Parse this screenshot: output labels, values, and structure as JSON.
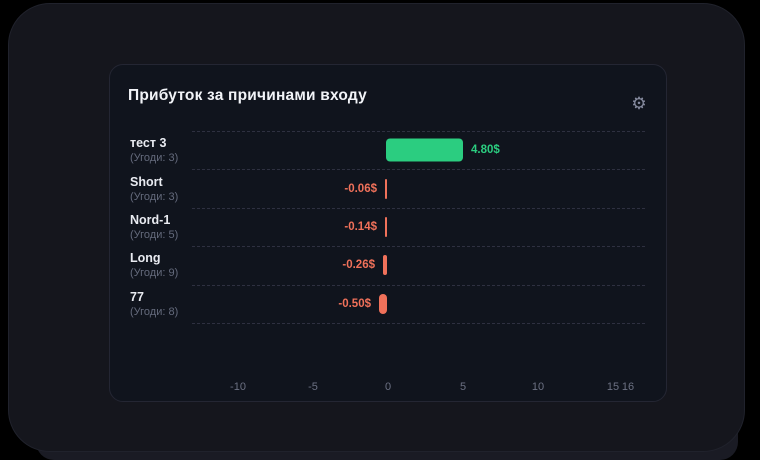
{
  "header": {
    "title": "Прибуток за причинами входу",
    "settings_icon": "gear",
    "settings_icon_glyph": "⚙"
  },
  "chart_data": {
    "type": "bar",
    "orientation": "horizontal",
    "title": "Прибуток за причинами входу",
    "rows": [
      {
        "label": "тест 3",
        "trades": "(Угоди: 3)",
        "value": 4.8,
        "value_label": "4.80$"
      },
      {
        "label": "Short",
        "trades": "(Угоди: 3)",
        "value": -0.06,
        "value_label": "-0.06$"
      },
      {
        "label": "Nord-1",
        "trades": "(Угоди: 5)",
        "value": -0.14,
        "value_label": "-0.14$"
      },
      {
        "label": "Long",
        "trades": "(Угоди: 9)",
        "value": -0.26,
        "value_label": "-0.26$"
      },
      {
        "label": "77",
        "trades": "(Угоди: 8)",
        "value": -0.5,
        "value_label": "-0.50$"
      }
    ],
    "x_ticks": [
      "-10",
      "-5",
      "0",
      "5",
      "10",
      "15",
      "16"
    ],
    "x_tick_values": [
      -10,
      -5,
      0,
      5,
      10,
      15,
      16
    ],
    "xlim": [
      -13.1,
      17.3
    ],
    "positive_color": "#2BCD80",
    "negative_color": "#F0715A",
    "axis_label_color": "#6C7183",
    "grid": "dashed horizontal row separators",
    "legend": "none"
  }
}
